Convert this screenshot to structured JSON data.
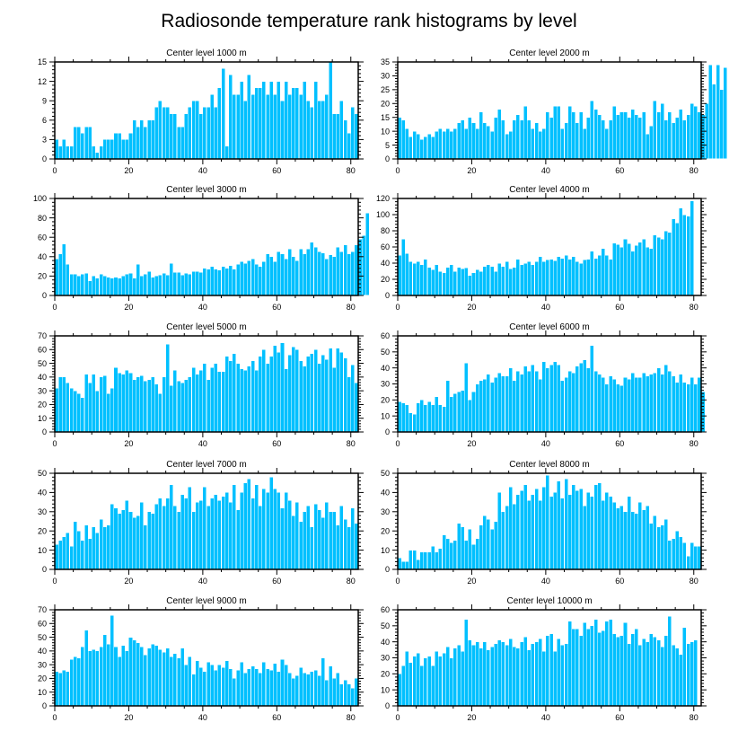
{
  "title": "Radiosonde temperature rank histograms by level",
  "colors": {
    "bar": "#00c0ff",
    "bar_edge": "#ffffff",
    "axis": "#000000"
  },
  "chart_data": [
    {
      "type": "bar",
      "title": "Center level 1000 m",
      "xlim": [
        0,
        82
      ],
      "ylim": [
        0,
        15
      ],
      "xticks": [
        0,
        20,
        40,
        60,
        80
      ],
      "yticks": [
        0,
        3,
        6,
        9,
        12,
        15
      ],
      "values": [
        3,
        2,
        3,
        2,
        2,
        5,
        5,
        4,
        5,
        5,
        2,
        1,
        2,
        3,
        3,
        3,
        4,
        4,
        3,
        3,
        4,
        6,
        5,
        6,
        5,
        6,
        6,
        8,
        9,
        8,
        8,
        7,
        7,
        5,
        5,
        7,
        8,
        9,
        9,
        7,
        8,
        8,
        10,
        8,
        11,
        14,
        2,
        13,
        10,
        10,
        12,
        9,
        13,
        10,
        11,
        11,
        12,
        10,
        12,
        10,
        12,
        9,
        12,
        10,
        11,
        11,
        10,
        12,
        9,
        8,
        12,
        9,
        9,
        10,
        15,
        7,
        7,
        9,
        6,
        4,
        8,
        7
      ]
    },
    {
      "type": "bar",
      "title": "Center level 2000 m",
      "xlim": [
        0,
        82
      ],
      "ylim": [
        0,
        35
      ],
      "xticks": [
        0,
        20,
        40,
        60,
        80
      ],
      "yticks": [
        0,
        5,
        10,
        15,
        20,
        25,
        30,
        35
      ],
      "values": [
        15,
        14,
        11,
        8,
        10,
        9,
        7,
        8,
        9,
        8,
        10,
        11,
        10,
        11,
        10,
        11,
        13,
        14,
        11,
        15,
        13,
        11,
        17,
        13,
        12,
        10,
        15,
        18,
        14,
        9,
        10,
        14,
        16,
        14,
        19,
        14,
        11,
        13,
        10,
        11,
        17,
        15,
        19,
        19,
        11,
        13,
        19,
        17,
        13,
        17,
        11,
        15,
        21,
        18,
        16,
        14,
        11,
        14,
        19,
        16,
        17,
        17,
        15,
        18,
        16,
        15,
        17,
        9,
        12,
        21,
        17,
        20,
        14,
        17,
        13,
        15,
        18,
        14,
        16,
        20,
        19,
        17,
        16,
        20,
        34,
        27,
        34,
        25,
        33
      ]
    },
    {
      "type": "bar",
      "title": "Center level 3000 m",
      "xlim": [
        0,
        82
      ],
      "ylim": [
        0,
        100
      ],
      "xticks": [
        0,
        20,
        40,
        60,
        80
      ],
      "yticks": [
        0,
        20,
        40,
        60,
        80,
        100
      ],
      "values": [
        38,
        43,
        53,
        32,
        22,
        22,
        20,
        22,
        23,
        15,
        20,
        18,
        22,
        20,
        19,
        18,
        19,
        18,
        20,
        22,
        23,
        18,
        32,
        20,
        22,
        25,
        19,
        20,
        21,
        23,
        21,
        33,
        24,
        24,
        21,
        23,
        22,
        25,
        25,
        24,
        28,
        27,
        30,
        27,
        26,
        30,
        28,
        31,
        27,
        32,
        35,
        33,
        36,
        38,
        32,
        30,
        35,
        43,
        40,
        35,
        45,
        43,
        38,
        48,
        40,
        36,
        48,
        43,
        48,
        55,
        50,
        45,
        44,
        38,
        42,
        40,
        50,
        45,
        52,
        43,
        45,
        52,
        58,
        62,
        85
      ]
    },
    {
      "type": "bar",
      "title": "Center level 4000 m",
      "xlim": [
        0,
        82
      ],
      "ylim": [
        0,
        120
      ],
      "xticks": [
        0,
        20,
        40,
        60,
        80
      ],
      "yticks": [
        0,
        20,
        40,
        60,
        80,
        100,
        120
      ],
      "values": [
        50,
        70,
        52,
        42,
        40,
        42,
        38,
        45,
        35,
        32,
        38,
        30,
        28,
        35,
        38,
        30,
        35,
        33,
        34,
        25,
        28,
        32,
        30,
        36,
        38,
        36,
        30,
        40,
        36,
        42,
        33,
        35,
        45,
        38,
        40,
        42,
        38,
        42,
        48,
        42,
        44,
        45,
        43,
        48,
        46,
        50,
        45,
        48,
        42,
        40,
        44,
        45,
        55,
        46,
        50,
        58,
        50,
        45,
        65,
        63,
        60,
        70,
        64,
        55,
        62,
        66,
        70,
        60,
        58,
        75,
        72,
        70,
        80,
        78,
        95,
        90,
        108,
        100,
        98,
        117
      ]
    },
    {
      "type": "bar",
      "title": "Center level 5000 m",
      "xlim": [
        0,
        82
      ],
      "ylim": [
        0,
        70
      ],
      "xticks": [
        0,
        20,
        40,
        60,
        80
      ],
      "yticks": [
        0,
        10,
        20,
        30,
        40,
        50,
        60,
        70
      ],
      "values": [
        32,
        40,
        40,
        36,
        32,
        30,
        28,
        25,
        42,
        36,
        42,
        30,
        40,
        41,
        28,
        32,
        47,
        43,
        42,
        45,
        43,
        38,
        40,
        41,
        37,
        38,
        40,
        35,
        28,
        40,
        64,
        34,
        45,
        37,
        36,
        38,
        40,
        47,
        42,
        45,
        50,
        38,
        47,
        50,
        44,
        44,
        55,
        52,
        57,
        50,
        46,
        45,
        48,
        52,
        45,
        55,
        60,
        50,
        55,
        63,
        58,
        65,
        46,
        56,
        62,
        60,
        52,
        48,
        55,
        57,
        60,
        50,
        56,
        53,
        61,
        47,
        61,
        58,
        54,
        40,
        49,
        36
      ]
    },
    {
      "type": "bar",
      "title": "Center level 6000 m",
      "xlim": [
        0,
        82
      ],
      "ylim": [
        0,
        60
      ],
      "xticks": [
        0,
        20,
        40,
        60,
        80
      ],
      "yticks": [
        0,
        10,
        20,
        30,
        40,
        50,
        60
      ],
      "values": [
        19,
        18,
        17,
        12,
        11,
        18,
        20,
        17,
        19,
        17,
        22,
        17,
        16,
        32,
        22,
        24,
        25,
        26,
        43,
        20,
        25,
        30,
        32,
        33,
        36,
        31,
        34,
        37,
        35,
        35,
        40,
        32,
        38,
        36,
        41,
        38,
        42,
        38,
        33,
        44,
        40,
        42,
        44,
        42,
        32,
        34,
        38,
        37,
        41,
        43,
        45,
        40,
        54,
        38,
        36,
        34,
        30,
        35,
        33,
        30,
        29,
        34,
        33,
        37,
        34,
        34,
        37,
        35,
        36,
        37,
        40,
        36,
        42,
        38,
        35,
        31,
        36,
        31,
        30,
        34,
        30,
        34,
        25
      ]
    },
    {
      "type": "bar",
      "title": "Center level 7000 m",
      "xlim": [
        0,
        82
      ],
      "ylim": [
        0,
        50
      ],
      "xticks": [
        0,
        20,
        40,
        60,
        80
      ],
      "yticks": [
        0,
        10,
        20,
        30,
        40,
        50
      ],
      "values": [
        13,
        15,
        17,
        19,
        12,
        25,
        20,
        15,
        23,
        16,
        22,
        19,
        26,
        22,
        23,
        34,
        32,
        29,
        31,
        36,
        30,
        27,
        28,
        35,
        23,
        30,
        29,
        34,
        37,
        33,
        37,
        44,
        33,
        30,
        39,
        37,
        43,
        30,
        35,
        36,
        43,
        33,
        37,
        39,
        36,
        38,
        40,
        35,
        44,
        31,
        40,
        45,
        47,
        37,
        44,
        33,
        42,
        40,
        48,
        42,
        40,
        32,
        40,
        36,
        28,
        35,
        25,
        30,
        33,
        22,
        34,
        31,
        27,
        35,
        30,
        30,
        23,
        33,
        26,
        22,
        32,
        24
      ]
    },
    {
      "type": "bar",
      "title": "Center level 8000 m",
      "xlim": [
        0,
        82
      ],
      "ylim": [
        0,
        50
      ],
      "xticks": [
        0,
        20,
        40,
        60,
        80
      ],
      "yticks": [
        0,
        10,
        20,
        30,
        40,
        50
      ],
      "values": [
        6,
        4,
        4,
        10,
        10,
        5,
        9,
        9,
        9,
        12,
        9,
        11,
        18,
        16,
        14,
        15,
        24,
        22,
        15,
        21,
        13,
        16,
        23,
        28,
        26,
        21,
        25,
        40,
        30,
        33,
        43,
        34,
        39,
        41,
        44,
        36,
        39,
        42,
        36,
        43,
        49,
        38,
        40,
        46,
        37,
        47,
        39,
        44,
        41,
        42,
        33,
        40,
        38,
        44,
        45,
        36,
        40,
        38,
        35,
        32,
        33,
        30,
        38,
        30,
        29,
        35,
        31,
        33,
        24,
        28,
        22,
        23,
        26,
        15,
        16,
        20,
        17,
        14,
        7,
        14,
        12,
        12
      ]
    },
    {
      "type": "bar",
      "title": "Center level 9000 m",
      "xlim": [
        0,
        82
      ],
      "ylim": [
        0,
        70
      ],
      "xticks": [
        0,
        20,
        40,
        60,
        80
      ],
      "yticks": [
        0,
        10,
        20,
        30,
        40,
        50,
        60,
        70
      ],
      "values": [
        25,
        24,
        26,
        25,
        34,
        36,
        35,
        43,
        55,
        40,
        41,
        40,
        43,
        52,
        45,
        66,
        43,
        36,
        44,
        40,
        50,
        48,
        46,
        43,
        37,
        42,
        45,
        44,
        41,
        39,
        42,
        36,
        38,
        35,
        42,
        30,
        36,
        23,
        33,
        28,
        25,
        32,
        30,
        26,
        30,
        28,
        33,
        27,
        20,
        26,
        32,
        24,
        27,
        29,
        27,
        24,
        32,
        27,
        26,
        31,
        25,
        34,
        30,
        24,
        20,
        22,
        28,
        24,
        23,
        25,
        26,
        22,
        35,
        19,
        29,
        20,
        24,
        16,
        19,
        16,
        13,
        20
      ]
    },
    {
      "type": "bar",
      "title": "Center level 10000 m",
      "xlim": [
        0,
        82
      ],
      "ylim": [
        0,
        60
      ],
      "xticks": [
        0,
        20,
        40,
        60,
        80
      ],
      "yticks": [
        0,
        10,
        20,
        30,
        40,
        50,
        60
      ],
      "values": [
        20,
        25,
        34,
        27,
        31,
        33,
        25,
        30,
        31,
        25,
        34,
        31,
        33,
        37,
        30,
        36,
        38,
        34,
        54,
        41,
        38,
        40,
        36,
        40,
        35,
        37,
        39,
        41,
        40,
        38,
        42,
        37,
        36,
        40,
        43,
        35,
        39,
        40,
        42,
        34,
        44,
        45,
        34,
        42,
        38,
        39,
        53,
        48,
        48,
        44,
        52,
        48,
        50,
        54,
        46,
        47,
        53,
        54,
        45,
        43,
        44,
        52,
        39,
        45,
        48,
        38,
        42,
        40,
        45,
        43,
        41,
        37,
        44,
        56,
        38,
        36,
        32,
        49,
        39,
        40,
        41
      ]
    }
  ]
}
